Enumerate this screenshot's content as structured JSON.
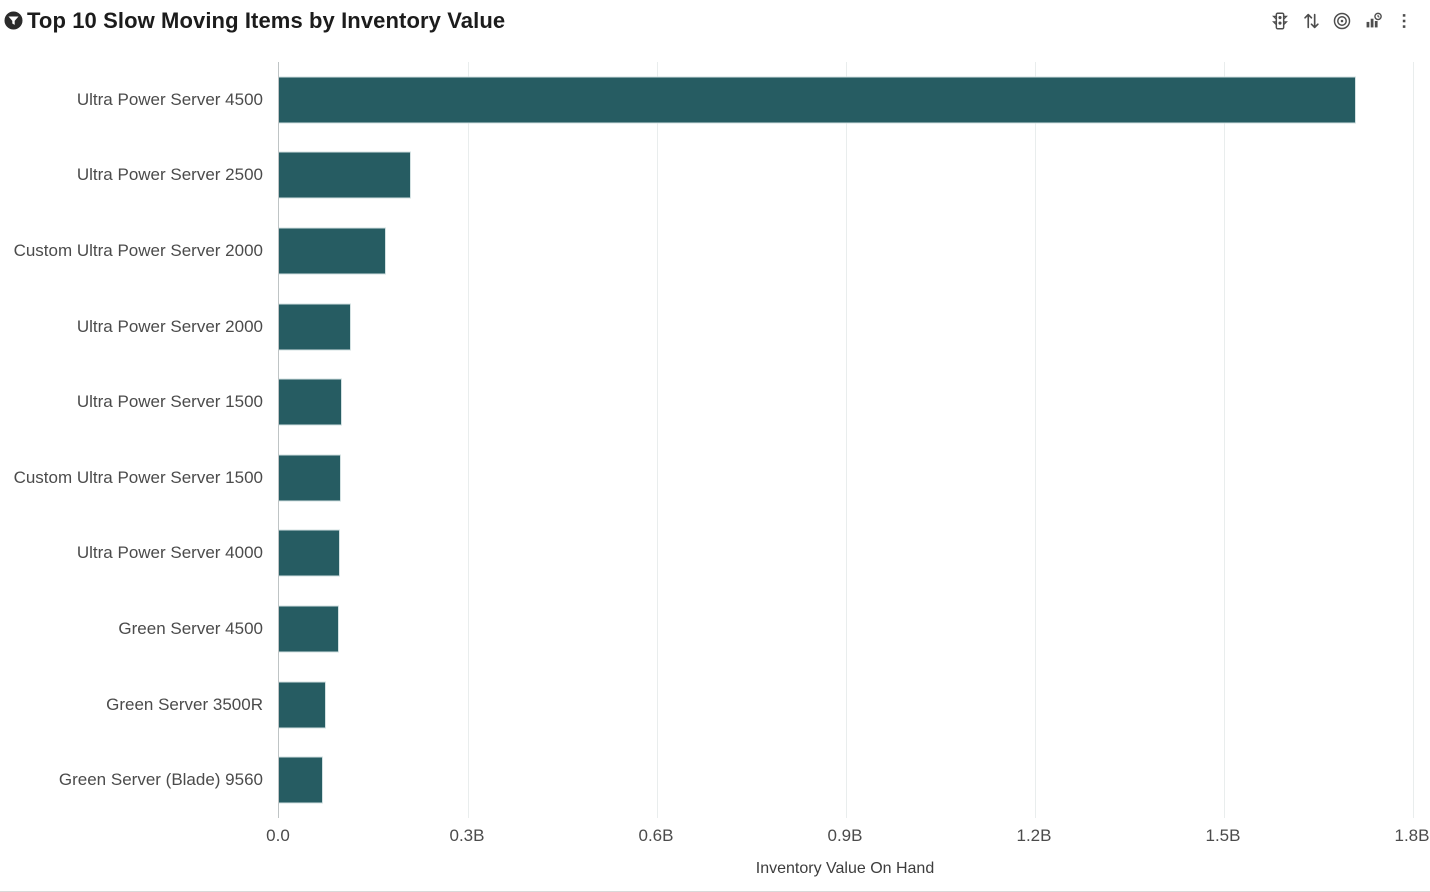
{
  "header": {
    "title": "Top 10 Slow Moving Items by Inventory Value",
    "filter_indicator_icon": "filter-circle-icon"
  },
  "toolbar": {
    "icons": [
      {
        "name": "traffic-light-icon"
      },
      {
        "name": "sort-icon"
      },
      {
        "name": "bullseye-icon"
      },
      {
        "name": "chart-type-icon"
      },
      {
        "name": "kebab-menu-icon"
      }
    ]
  },
  "chart_data": {
    "type": "bar",
    "orientation": "horizontal",
    "title": "Top 10 Slow Moving Items by Inventory Value",
    "categories": [
      "Ultra Power Server 4500",
      "Ultra Power Server 2500",
      "Custom Ultra Power Server 2000",
      "Ultra Power Server 2000",
      "Ultra Power Server 1500",
      "Custom Ultra Power Server 1500",
      "Ultra Power Server 4000",
      "Green Server 4500",
      "Green Server 3500R",
      "Green Server (Blade) 9560"
    ],
    "values": [
      1.71,
      0.21,
      0.17,
      0.115,
      0.1,
      0.098,
      0.097,
      0.096,
      0.075,
      0.07
    ],
    "value_unit": "B",
    "xlabel": "Inventory Value On Hand",
    "ylabel": "",
    "xlim": [
      0,
      1.8
    ],
    "xticks": [
      {
        "value": 0.0,
        "label": "0.0"
      },
      {
        "value": 0.3,
        "label": "0.3B"
      },
      {
        "value": 0.6,
        "label": "0.6B"
      },
      {
        "value": 0.9,
        "label": "0.9B"
      },
      {
        "value": 1.2,
        "label": "1.2B"
      },
      {
        "value": 1.5,
        "label": "1.5B"
      },
      {
        "value": 1.8,
        "label": "1.8B"
      }
    ],
    "grid": "vertical-only",
    "legend": "none",
    "bar_color": "#265c62",
    "gridline_color": "#e9eded",
    "axis_line_color": "#bfc4c5"
  }
}
